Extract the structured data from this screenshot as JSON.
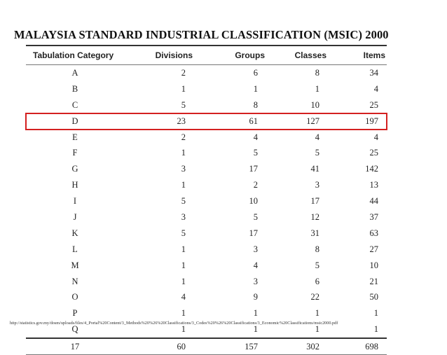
{
  "title": "MALAYSIA STANDARD INDUSTRIAL CLASSIFICATION (MSIC) 2000",
  "table": {
    "headers": [
      "Tabulation Category",
      "Divisions",
      "Groups",
      "Classes",
      "Items"
    ],
    "rows": [
      [
        "A",
        "2",
        "6",
        "8",
        "34"
      ],
      [
        "B",
        "1",
        "1",
        "1",
        "4"
      ],
      [
        "C",
        "5",
        "8",
        "10",
        "25"
      ],
      [
        "D",
        "23",
        "61",
        "127",
        "197"
      ],
      [
        "E",
        "2",
        "4",
        "4",
        "4"
      ],
      [
        "F",
        "1",
        "5",
        "5",
        "25"
      ],
      [
        "G",
        "3",
        "17",
        "41",
        "142"
      ],
      [
        "H",
        "1",
        "2",
        "3",
        "13"
      ],
      [
        "I",
        "5",
        "10",
        "17",
        "44"
      ],
      [
        "J",
        "3",
        "5",
        "12",
        "37"
      ],
      [
        "K",
        "5",
        "17",
        "31",
        "63"
      ],
      [
        "L",
        "1",
        "3",
        "8",
        "27"
      ],
      [
        "M",
        "1",
        "4",
        "5",
        "10"
      ],
      [
        "N",
        "1",
        "3",
        "6",
        "21"
      ],
      [
        "O",
        "4",
        "9",
        "22",
        "50"
      ],
      [
        "P",
        "1",
        "1",
        "1",
        "1"
      ],
      [
        "Q",
        "1",
        "1",
        "1",
        "1"
      ]
    ],
    "total": [
      "17",
      "60",
      "157",
      "302",
      "698"
    ],
    "highlighted_category": "D",
    "highlight_color": "#d42020"
  },
  "source_url": "http://statistics.gov.my/dosm/uploads/files/4_Portal%20Content/3_Methods%20%26%20Classifications/3_Codes%20%26%20Classifications/3_Economic%20Classifications/msic2000.pdf"
}
